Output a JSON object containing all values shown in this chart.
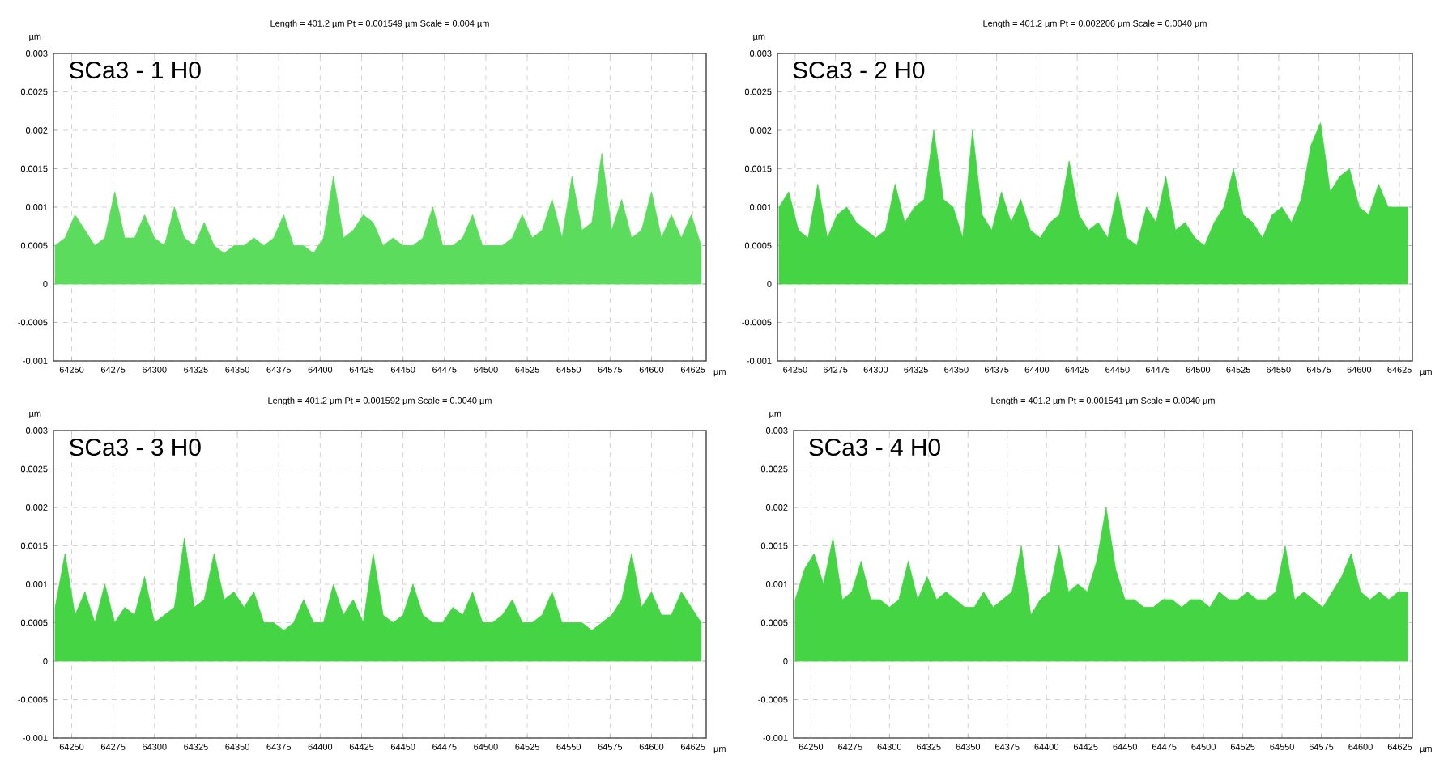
{
  "chart_data": [
    {
      "type": "area",
      "title": "SCa3 - 1 H0",
      "subtitle": "Length = 401.2 µm  Pt = 0.001549 µm  Scale = 0.004 µm",
      "xlabel": "µm",
      "ylabel": "µm",
      "color": "#5cdc5c",
      "grid": true,
      "xlim": [
        64239,
        64633
      ],
      "ylim": [
        -0.001,
        0.003
      ],
      "xticks": [
        64250,
        64275,
        64300,
        64325,
        64350,
        64375,
        64400,
        64425,
        64450,
        64475,
        64500,
        64525,
        64550,
        64575,
        64600,
        64625
      ],
      "yticks": [
        -0.001,
        -0.0005,
        0,
        0.0005,
        0.001,
        0.0015,
        0.002,
        0.0025,
        0.003
      ],
      "x": [
        64240,
        64246,
        64252,
        64258,
        64264,
        64270,
        64276,
        64282,
        64288,
        64294,
        64300,
        64306,
        64312,
        64318,
        64324,
        64330,
        64336,
        64342,
        64348,
        64354,
        64360,
        64366,
        64372,
        64378,
        64384,
        64390,
        64396,
        64402,
        64408,
        64414,
        64420,
        64426,
        64432,
        64438,
        64444,
        64450,
        64456,
        64462,
        64468,
        64474,
        64480,
        64486,
        64492,
        64498,
        64504,
        64510,
        64516,
        64522,
        64528,
        64534,
        64540,
        64546,
        64552,
        64558,
        64564,
        64570,
        64576,
        64582,
        64588,
        64594,
        64600,
        64606,
        64612,
        64618,
        64624,
        64630
      ],
      "values": [
        0.0005,
        0.0006,
        0.0009,
        0.0007,
        0.0005,
        0.0006,
        0.0012,
        0.0006,
        0.0006,
        0.0009,
        0.0006,
        0.0005,
        0.001,
        0.0006,
        0.0005,
        0.0008,
        0.0005,
        0.0004,
        0.0005,
        0.0005,
        0.0006,
        0.0005,
        0.0006,
        0.0009,
        0.0005,
        0.0005,
        0.0004,
        0.0006,
        0.0014,
        0.0006,
        0.0007,
        0.0009,
        0.0008,
        0.0005,
        0.0006,
        0.0005,
        0.0005,
        0.0006,
        0.001,
        0.0005,
        0.0005,
        0.0006,
        0.0009,
        0.0005,
        0.0005,
        0.0005,
        0.0006,
        0.0009,
        0.0006,
        0.0007,
        0.0011,
        0.0006,
        0.0014,
        0.0007,
        0.0008,
        0.0017,
        0.0007,
        0.0011,
        0.0006,
        0.0007,
        0.0012,
        0.0006,
        0.0009,
        0.0006,
        0.0009,
        0.0005
      ]
    },
    {
      "type": "area",
      "title": "SCa3 - 2 H0",
      "subtitle": "Length = 401.2 µm  Pt = 0.002206 µm  Scale = 0.0040 µm",
      "xlabel": "µm",
      "ylabel": "µm",
      "color": "#44d444",
      "grid": true,
      "xlim": [
        64239,
        64633
      ],
      "ylim": [
        -0.001,
        0.003
      ],
      "xticks": [
        64250,
        64275,
        64300,
        64325,
        64350,
        64375,
        64400,
        64425,
        64450,
        64475,
        64500,
        64525,
        64550,
        64575,
        64600,
        64625
      ],
      "yticks": [
        -0.001,
        -0.0005,
        0,
        0.0005,
        0.001,
        0.0015,
        0.002,
        0.0025,
        0.003
      ],
      "x": [
        64240,
        64246,
        64252,
        64258,
        64264,
        64270,
        64276,
        64282,
        64288,
        64294,
        64300,
        64306,
        64312,
        64318,
        64324,
        64330,
        64336,
        64342,
        64348,
        64354,
        64360,
        64366,
        64372,
        64378,
        64384,
        64390,
        64396,
        64402,
        64408,
        64414,
        64420,
        64426,
        64432,
        64438,
        64444,
        64450,
        64456,
        64462,
        64468,
        64474,
        64480,
        64486,
        64492,
        64498,
        64504,
        64510,
        64516,
        64522,
        64528,
        64534,
        64540,
        64546,
        64552,
        64558,
        64564,
        64570,
        64576,
        64582,
        64588,
        64594,
        64600,
        64606,
        64612,
        64618,
        64624,
        64630
      ],
      "values": [
        0.001,
        0.0012,
        0.0007,
        0.0006,
        0.0013,
        0.0006,
        0.0009,
        0.001,
        0.0008,
        0.0007,
        0.0006,
        0.0007,
        0.0013,
        0.0008,
        0.001,
        0.0011,
        0.002,
        0.0011,
        0.001,
        0.0006,
        0.002,
        0.0009,
        0.0007,
        0.0012,
        0.0008,
        0.0011,
        0.0007,
        0.0006,
        0.0008,
        0.0009,
        0.0016,
        0.0009,
        0.0007,
        0.0008,
        0.0006,
        0.0012,
        0.0006,
        0.0005,
        0.001,
        0.0008,
        0.0014,
        0.0007,
        0.0008,
        0.0006,
        0.0005,
        0.0008,
        0.001,
        0.0015,
        0.0009,
        0.0008,
        0.0006,
        0.0009,
        0.001,
        0.0008,
        0.0011,
        0.0018,
        0.0021,
        0.0012,
        0.0014,
        0.0015,
        0.001,
        0.0009,
        0.0013,
        0.001,
        0.001,
        0.001
      ]
    },
    {
      "type": "area",
      "title": "SCa3 - 3 H0",
      "subtitle": "Length = 401.2 µm  Pt = 0.001592 µm  Scale = 0.0040 µm",
      "xlabel": "µm",
      "ylabel": "µm",
      "color": "#44d444",
      "grid": true,
      "xlim": [
        64239,
        64633
      ],
      "ylim": [
        -0.001,
        0.003
      ],
      "xticks": [
        64250,
        64275,
        64300,
        64325,
        64350,
        64375,
        64400,
        64425,
        64450,
        64475,
        64500,
        64525,
        64550,
        64575,
        64600,
        64625
      ],
      "yticks": [
        -0.001,
        -0.0005,
        0,
        0.0005,
        0.001,
        0.0015,
        0.002,
        0.0025,
        0.003
      ],
      "x": [
        64240,
        64246,
        64252,
        64258,
        64264,
        64270,
        64276,
        64282,
        64288,
        64294,
        64300,
        64306,
        64312,
        64318,
        64324,
        64330,
        64336,
        64342,
        64348,
        64354,
        64360,
        64366,
        64372,
        64378,
        64384,
        64390,
        64396,
        64402,
        64408,
        64414,
        64420,
        64426,
        64432,
        64438,
        64444,
        64450,
        64456,
        64462,
        64468,
        64474,
        64480,
        64486,
        64492,
        64498,
        64504,
        64510,
        64516,
        64522,
        64528,
        64534,
        64540,
        64546,
        64552,
        64558,
        64564,
        64570,
        64576,
        64582,
        64588,
        64594,
        64600,
        64606,
        64612,
        64618,
        64624,
        64630
      ],
      "values": [
        0.0007,
        0.0014,
        0.0006,
        0.0009,
        0.0005,
        0.001,
        0.0005,
        0.0007,
        0.0006,
        0.0011,
        0.0005,
        0.0006,
        0.0007,
        0.0016,
        0.0007,
        0.0008,
        0.0014,
        0.0008,
        0.0009,
        0.0007,
        0.0009,
        0.0005,
        0.0005,
        0.0004,
        0.0005,
        0.0008,
        0.0005,
        0.0005,
        0.001,
        0.0006,
        0.0008,
        0.0005,
        0.0014,
        0.0006,
        0.0005,
        0.0006,
        0.001,
        0.0006,
        0.0005,
        0.0005,
        0.0007,
        0.0006,
        0.0009,
        0.0005,
        0.0005,
        0.0006,
        0.0008,
        0.0005,
        0.0005,
        0.0006,
        0.0009,
        0.0005,
        0.0005,
        0.0005,
        0.0004,
        0.0005,
        0.0006,
        0.0008,
        0.0014,
        0.0007,
        0.0009,
        0.0006,
        0.0006,
        0.0009,
        0.0007,
        0.0005
      ]
    },
    {
      "type": "area",
      "title": "SCa3 - 4 H0",
      "subtitle": "Length = 401.2 µm  Pt = 0.001541 µm  Scale = 0.0040 µm",
      "xlabel": "µm",
      "ylabel": "µm",
      "color": "#44d444",
      "grid": true,
      "xlim": [
        64239,
        64633
      ],
      "ylim": [
        -0.001,
        0.003
      ],
      "xticks": [
        64250,
        64275,
        64300,
        64325,
        64350,
        64375,
        64400,
        64425,
        64450,
        64475,
        64500,
        64525,
        64550,
        64575,
        64600,
        64625
      ],
      "yticks": [
        -0.001,
        -0.0005,
        0,
        0.0005,
        0.001,
        0.0015,
        0.002,
        0.0025,
        0.003
      ],
      "x": [
        64240,
        64246,
        64252,
        64258,
        64264,
        64270,
        64276,
        64282,
        64288,
        64294,
        64300,
        64306,
        64312,
        64318,
        64324,
        64330,
        64336,
        64342,
        64348,
        64354,
        64360,
        64366,
        64372,
        64378,
        64384,
        64390,
        64396,
        64402,
        64408,
        64414,
        64420,
        64426,
        64432,
        64438,
        64444,
        64450,
        64456,
        64462,
        64468,
        64474,
        64480,
        64486,
        64492,
        64498,
        64504,
        64510,
        64516,
        64522,
        64528,
        64534,
        64540,
        64546,
        64552,
        64558,
        64564,
        64570,
        64576,
        64582,
        64588,
        64594,
        64600,
        64606,
        64612,
        64618,
        64624,
        64630
      ],
      "values": [
        0.0008,
        0.0012,
        0.0014,
        0.001,
        0.0016,
        0.0008,
        0.0009,
        0.0013,
        0.0008,
        0.0008,
        0.0007,
        0.0008,
        0.0013,
        0.0008,
        0.0011,
        0.0008,
        0.0009,
        0.0008,
        0.0007,
        0.0007,
        0.0009,
        0.0007,
        0.0008,
        0.0009,
        0.0015,
        0.0006,
        0.0008,
        0.0009,
        0.0015,
        0.0009,
        0.001,
        0.0009,
        0.0013,
        0.002,
        0.0012,
        0.0008,
        0.0008,
        0.0007,
        0.0007,
        0.0008,
        0.0008,
        0.0007,
        0.0008,
        0.0008,
        0.0007,
        0.0009,
        0.0008,
        0.0008,
        0.0009,
        0.0008,
        0.0008,
        0.0009,
        0.0015,
        0.0008,
        0.0009,
        0.0008,
        0.0007,
        0.0009,
        0.0011,
        0.0014,
        0.0009,
        0.0008,
        0.0009,
        0.0008,
        0.0009,
        0.0009
      ]
    }
  ]
}
